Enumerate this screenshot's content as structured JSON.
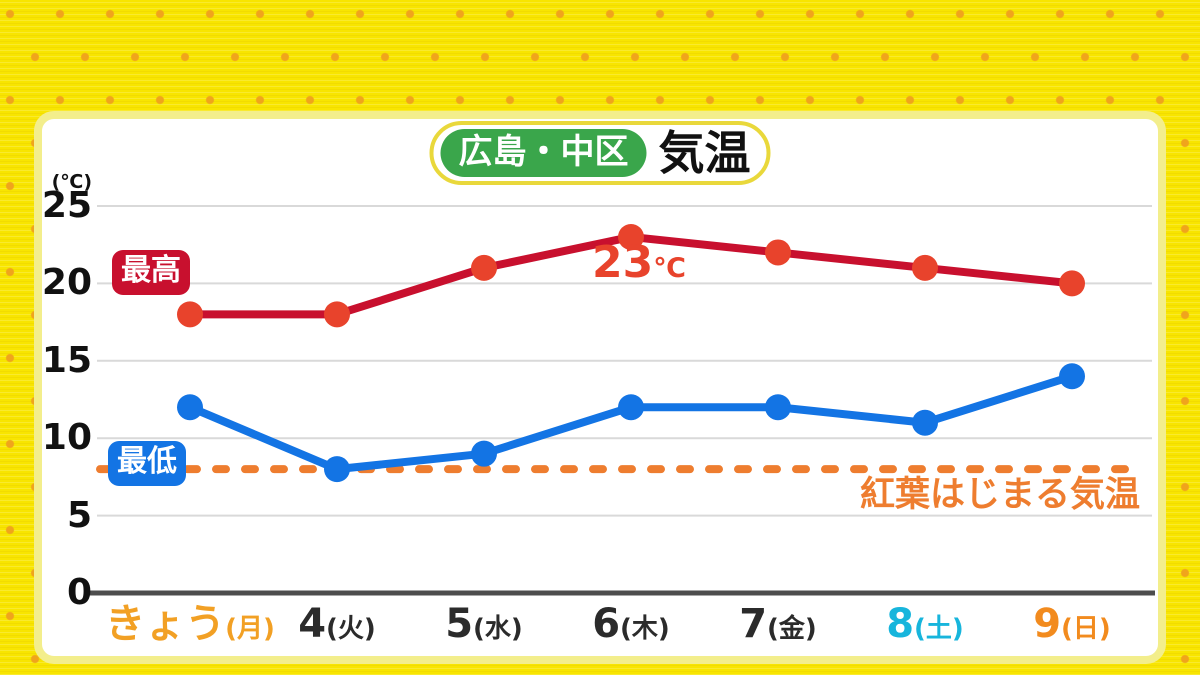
{
  "header": {
    "location": "広島・中区",
    "title_suffix": "気温"
  },
  "y_axis": {
    "unit_label": "(℃)",
    "ticks": [
      25,
      20,
      15,
      10,
      5,
      0
    ]
  },
  "badges": {
    "max": "最高",
    "min": "最低"
  },
  "peak_annotation": {
    "value": "23",
    "unit": "℃"
  },
  "reference": {
    "label": "紅葉はじまる気温"
  },
  "x_axis": {
    "labels": [
      {
        "day": "きょう",
        "week": "(月)",
        "color": "#f2a024"
      },
      {
        "day": "4",
        "week": "(火)",
        "color": "#2b2b2b"
      },
      {
        "day": "5",
        "week": "(水)",
        "color": "#2b2b2b"
      },
      {
        "day": "6",
        "week": "(木)",
        "color": "#2b2b2b"
      },
      {
        "day": "7",
        "week": "(金)",
        "color": "#2b2b2b"
      },
      {
        "day": "8",
        "week": "(土)",
        "color": "#17b5dc"
      },
      {
        "day": "9",
        "week": "(日)",
        "color": "#f28b1e"
      }
    ]
  },
  "chart_data": {
    "type": "line",
    "title": "広島・中区 気温",
    "categories": [
      "きょう(月)",
      "4(火)",
      "5(水)",
      "6(木)",
      "7(金)",
      "8(土)",
      "9(日)"
    ],
    "series": [
      {
        "name": "最高",
        "values": [
          18,
          18,
          21,
          23,
          22,
          21,
          20
        ],
        "line_color": "#c8102e",
        "dot_color": "#e8432c"
      },
      {
        "name": "最低",
        "values": [
          12,
          8,
          9,
          12,
          12,
          11,
          14
        ],
        "line_color": "#1374e4",
        "dot_color": "#1374e4"
      }
    ],
    "reference_line": {
      "value": 8,
      "label": "紅葉はじまる気温",
      "color": "#ee7d2f",
      "style": "dashed"
    },
    "annotations": [
      {
        "text": "23℃",
        "series": "最高",
        "index": 3
      }
    ],
    "unit": "℃",
    "ylim": [
      0,
      25
    ],
    "y_ticks": [
      0,
      5,
      10,
      15,
      20,
      25
    ],
    "grid": true,
    "legend_position": "on-plot-left-badges"
  },
  "colors": {
    "background_yellow": "#f8e500",
    "pattern_dot_orange": "#f0a41c",
    "card_border_pale_yellow": "#f3ee8c",
    "title_pill_border": "#e9d83b",
    "location_pill_green": "#3aa64b",
    "max_line": "#c8102e",
    "max_dot": "#e8432c",
    "min_line": "#1374e4",
    "reference_orange": "#ee7d2f",
    "today_label_orange": "#f2a024",
    "saturday_label_cyan": "#17b5dc",
    "sunday_label_orange": "#f28b1e",
    "gridline_gray": "#d9d9d9",
    "axis_dark_gray": "#4d4d4d"
  }
}
